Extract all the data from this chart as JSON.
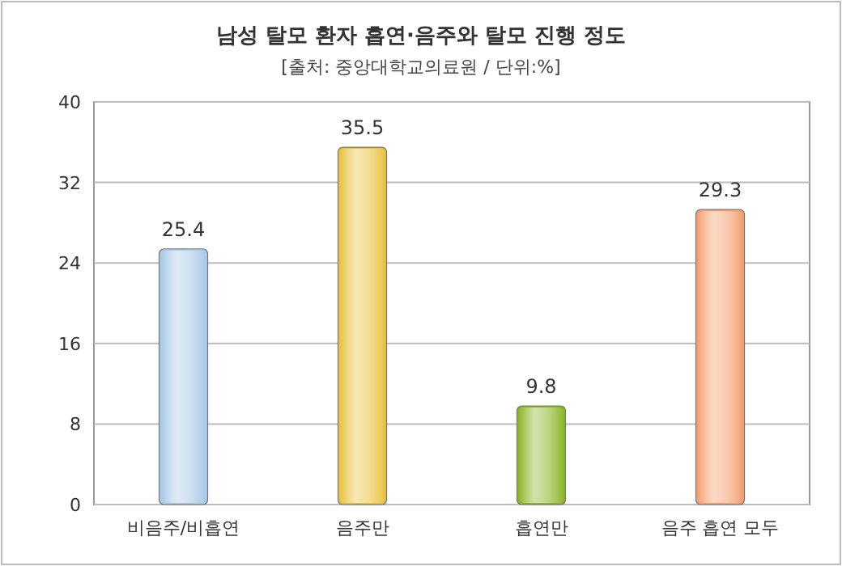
{
  "chart_data": {
    "type": "bar",
    "title": "남성 탈모 환자 흡연·음주와 탈모 진행 정도",
    "subtitle": "[출처: 중앙대학교의료원 / 단위:%]",
    "categories": [
      "비음주/비흡연",
      "음주만",
      "흡연만",
      "음주 흡연 모두"
    ],
    "values": [
      25.4,
      35.5,
      9.8,
      29.3
    ],
    "colors": [
      "#a9c8e6",
      "#e8c23e",
      "#8cb526",
      "#f2a070"
    ],
    "ylim": [
      0,
      40
    ],
    "yticks": [
      0,
      8,
      16,
      24,
      32,
      40
    ],
    "grid": "y",
    "data_labels": true
  }
}
